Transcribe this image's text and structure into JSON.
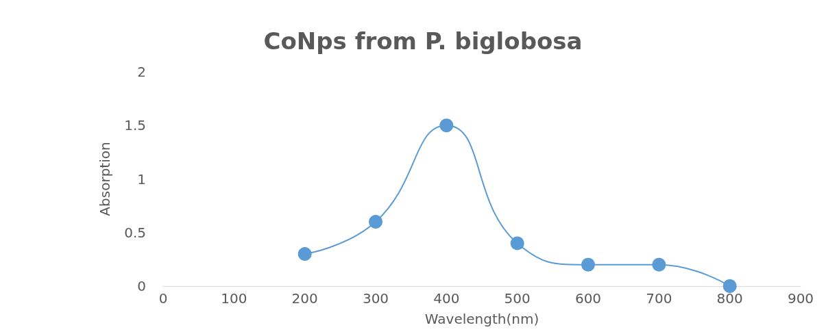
{
  "chart_data": {
    "type": "line",
    "title": "CoNps from P. biglobosa",
    "xlabel": "Wavelength(nm)",
    "ylabel": "Absorption",
    "x": [
      200,
      300,
      400,
      500,
      600,
      700,
      800
    ],
    "series": [
      {
        "color": "#5b9bd5",
        "values": [
          0.3,
          0.6,
          1.5,
          0.4,
          0.2,
          0.2,
          0
        ]
      }
    ],
    "xlim": [
      0,
      900
    ],
    "xticks": [
      0,
      100,
      200,
      300,
      400,
      500,
      600,
      700,
      800,
      900
    ],
    "ylim": [
      0,
      2
    ],
    "yticks": [
      0,
      0.5,
      1,
      1.5,
      2
    ],
    "grid": false,
    "marker": "circle",
    "line_style": "solid"
  }
}
